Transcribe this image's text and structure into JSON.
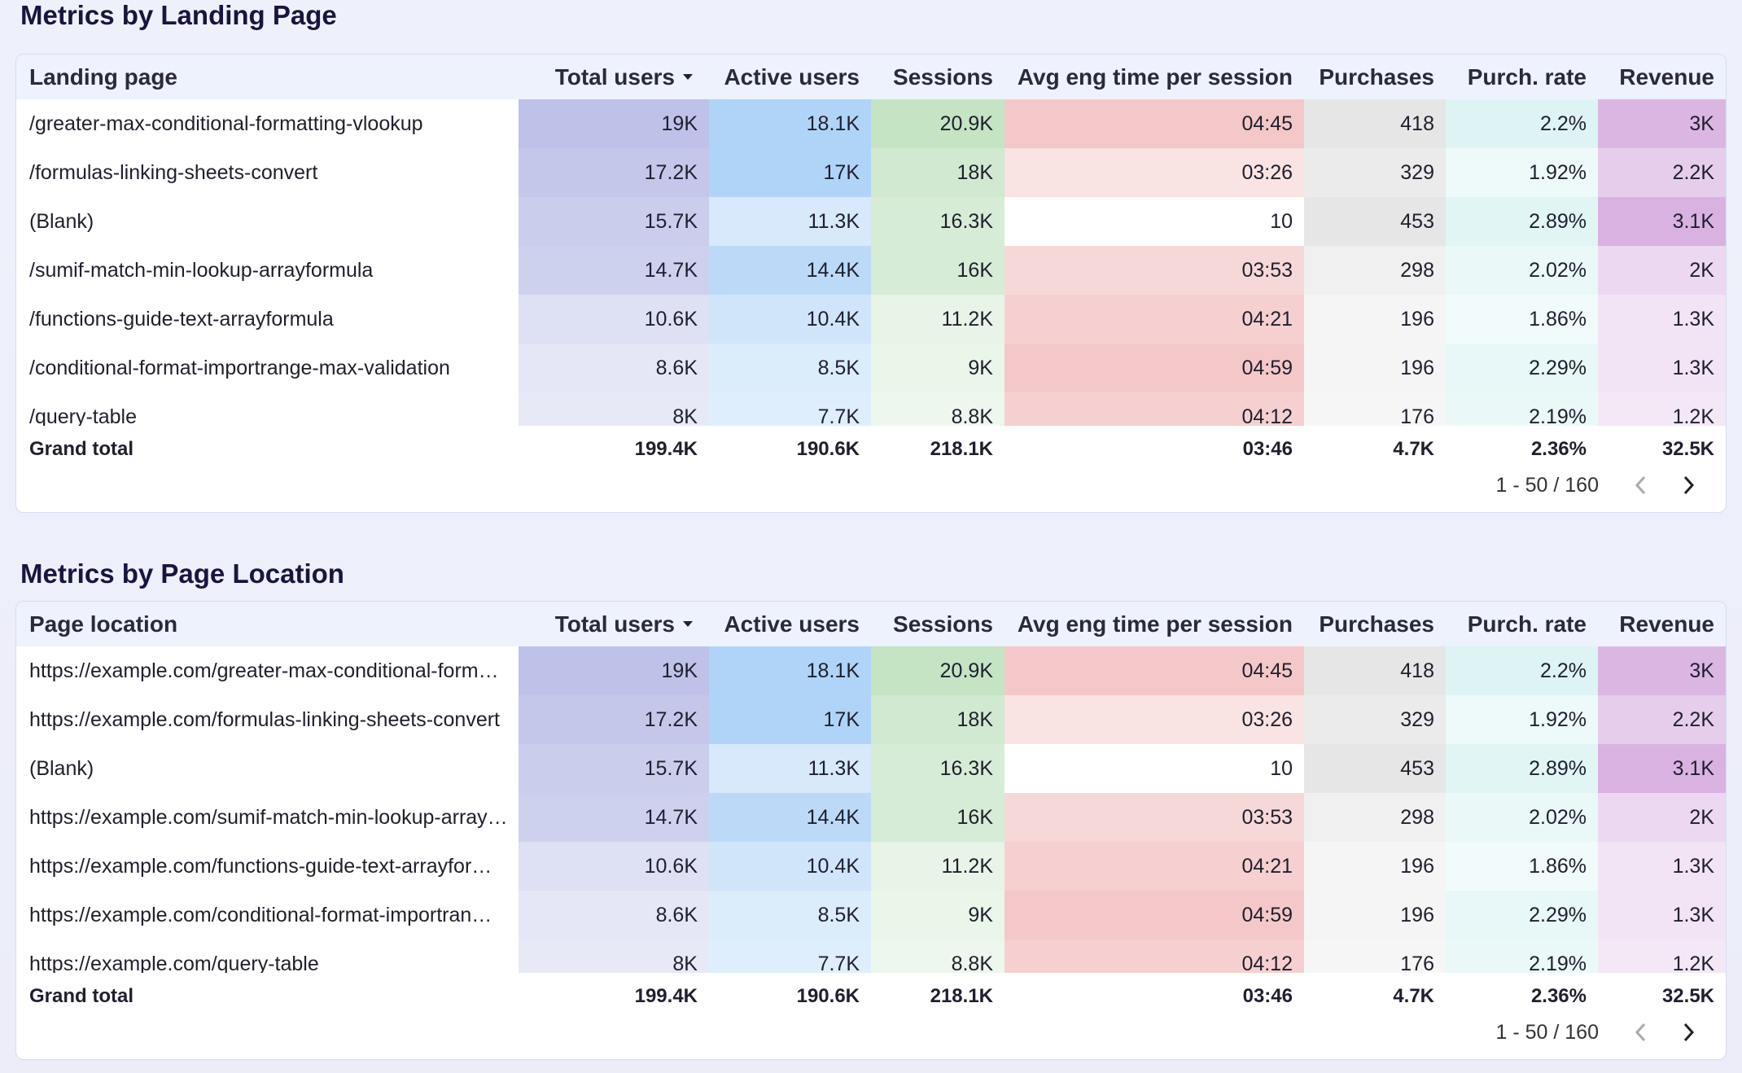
{
  "sections": [
    {
      "title": "Metrics by Landing Page",
      "columns": [
        "Landing page",
        "Total users",
        "Active users",
        "Sessions",
        "Avg eng time per session",
        "Purchases",
        "Purch. rate",
        "Revenue"
      ],
      "rows": [
        [
          "/greater-max-conditional-formatting-vlookup",
          "19K",
          "18.1K",
          "20.9K",
          "04:45",
          "418",
          "2.2%",
          "3K"
        ],
        [
          "/formulas-linking-sheets-convert",
          "17.2K",
          "17K",
          "18K",
          "03:26",
          "329",
          "1.92%",
          "2.2K"
        ],
        [
          "(Blank)",
          "15.7K",
          "11.3K",
          "16.3K",
          "10",
          "453",
          "2.89%",
          "3.1K"
        ],
        [
          "/sumif-match-min-lookup-arrayformula",
          "14.7K",
          "14.4K",
          "16K",
          "03:53",
          "298",
          "2.02%",
          "2K"
        ],
        [
          "/functions-guide-text-arrayformula",
          "10.6K",
          "10.4K",
          "11.2K",
          "04:21",
          "196",
          "1.86%",
          "1.3K"
        ],
        [
          "/conditional-format-importrange-max-validation",
          "8.6K",
          "8.5K",
          "9K",
          "04:59",
          "196",
          "2.29%",
          "1.3K"
        ],
        [
          "/query-table",
          "8K",
          "7.7K",
          "8.8K",
          "04:12",
          "176",
          "2.19%",
          "1.2K"
        ]
      ],
      "grand_total": [
        "Grand total",
        "199.4K",
        "190.6K",
        "218.1K",
        "03:46",
        "4.7K",
        "2.36%",
        "32.5K"
      ],
      "pagination": "1 - 50 / 160"
    },
    {
      "title": "Metrics by Page Location",
      "columns": [
        "Page location",
        "Total users",
        "Active users",
        "Sessions",
        "Avg eng time per session",
        "Purchases",
        "Purch. rate",
        "Revenue"
      ],
      "rows": [
        [
          "https://example.com/greater-max-conditional-form…",
          "19K",
          "18.1K",
          "20.9K",
          "04:45",
          "418",
          "2.2%",
          "3K"
        ],
        [
          "https://example.com/formulas-linking-sheets-convert",
          "17.2K",
          "17K",
          "18K",
          "03:26",
          "329",
          "1.92%",
          "2.2K"
        ],
        [
          "(Blank)",
          "15.7K",
          "11.3K",
          "16.3K",
          "10",
          "453",
          "2.89%",
          "3.1K"
        ],
        [
          "https://example.com/sumif-match-min-lookup-array…",
          "14.7K",
          "14.4K",
          "16K",
          "03:53",
          "298",
          "2.02%",
          "2K"
        ],
        [
          "https://example.com/functions-guide-text-arrayfor…",
          "10.6K",
          "10.4K",
          "11.2K",
          "04:21",
          "196",
          "1.86%",
          "1.3K"
        ],
        [
          "https://example.com/conditional-format-importran…",
          "8.6K",
          "8.5K",
          "9K",
          "04:59",
          "196",
          "2.29%",
          "1.3K"
        ],
        [
          "https://example.com/query-table",
          "8K",
          "7.7K",
          "8.8K",
          "04:12",
          "176",
          "2.19%",
          "1.2K"
        ]
      ],
      "grand_total": [
        "Grand total",
        "199.4K",
        "190.6K",
        "218.1K",
        "03:46",
        "4.7K",
        "2.36%",
        "32.5K"
      ],
      "pagination": "1 - 50 / 160"
    }
  ]
}
